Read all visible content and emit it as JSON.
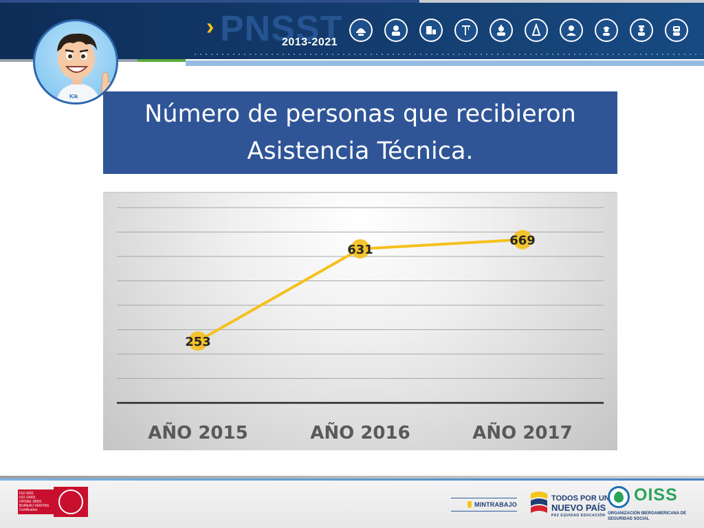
{
  "header": {
    "brand": "PNSST",
    "years": "2013-2021",
    "brand_color": "#2a5a99",
    "accent_color": "#f5c518",
    "icons": [
      "helmet-worker-icon",
      "mechanic-icon",
      "construction-icon",
      "crane-icon",
      "miner-icon",
      "oil-rig-icon",
      "factory-worker-icon",
      "engineer-icon",
      "nurse-icon",
      "welder-icon"
    ]
  },
  "title": {
    "line1": "Número de personas que recibieron",
    "line2": "Asistencia Técnica.",
    "background": "#2f5597"
  },
  "chart_data": {
    "type": "line",
    "categories": [
      "AÑO 2015",
      "AÑO 2016",
      "AÑO 2017"
    ],
    "series": [
      {
        "values": [
          253,
          631,
          669
        ],
        "color": "#f5c01a"
      }
    ],
    "data_labels": [
      "253",
      "631",
      "669"
    ],
    "ylim": [
      0,
      800
    ],
    "grid": true,
    "legend": "none",
    "title": "",
    "xlabel": "",
    "ylabel": ""
  },
  "footer": {
    "cert_lines": [
      "ISO 9001",
      "ISO 14001",
      "OHSAS 18001",
      "BUREAU VERITAS",
      "Certification"
    ],
    "mintrabajo": "MINTRABAJO",
    "tpnp_line1": "TODOS POR UN",
    "tpnp_line2": "NUEVO PAÍS",
    "tpnp_line3": "PAZ  EQUIDAD  EDUCACIÓN",
    "oiss": "OISS",
    "oiss_sub": "ORGANIZACIÓN IBEROAMERICANA DE SEGURIDAD SOCIAL"
  }
}
